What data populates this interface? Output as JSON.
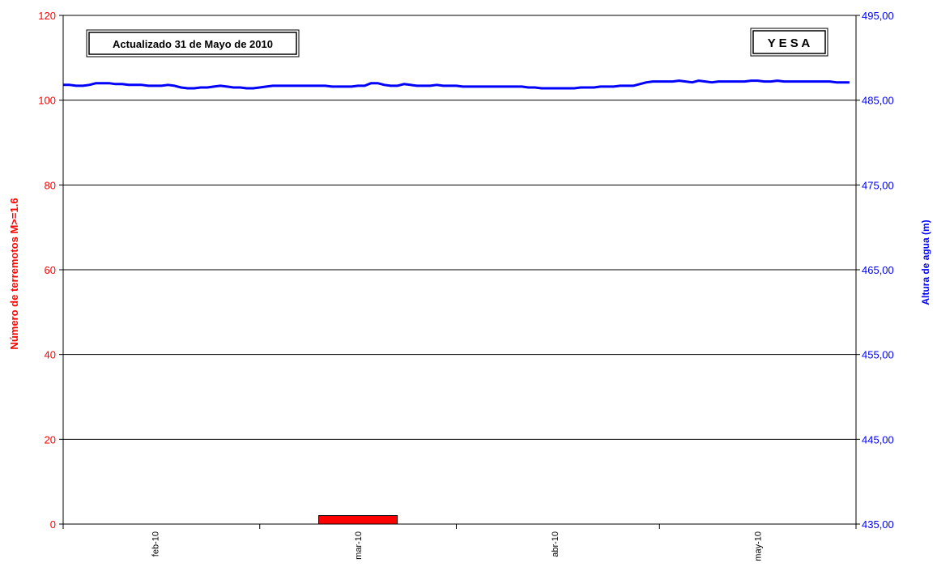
{
  "chart_data": {
    "type": "bar+line",
    "update_label": "Actualizado 31 de Mayo de 2010",
    "station_label": "Y E S A",
    "y_left": {
      "label": "Número de terremotos M>=1.6",
      "ylim": [
        0,
        120
      ],
      "ticks": [
        "0",
        "20",
        "40",
        "60",
        "80",
        "100",
        "120"
      ],
      "color": "#ff0000"
    },
    "y_right": {
      "label": "Altura de agua (m)",
      "ylim": [
        435,
        495
      ],
      "ticks": [
        "435,00",
        "445,00",
        "455,00",
        "465,00",
        "475,00",
        "485,00",
        "495,00"
      ],
      "color": "#0000ff"
    },
    "x": {
      "range_days": [
        0,
        121
      ],
      "month_labels": [
        "feb-10",
        "mar-10",
        "abr-10",
        "may-10"
      ],
      "month_label_day": [
        14,
        45,
        75,
        106
      ],
      "month_boundaries_day": [
        0,
        30,
        60,
        91,
        121
      ]
    },
    "bars": {
      "name": "Número de terremotos",
      "color": "#ff0000",
      "data": [
        {
          "day_start": 39,
          "day_end": 51,
          "value": 2
        }
      ]
    },
    "line": {
      "name": "Altura de agua (m)",
      "color": "#0000ff",
      "day_step": 1,
      "values": [
        486.8,
        486.8,
        486.7,
        486.7,
        486.8,
        487.0,
        487.0,
        487.0,
        486.9,
        486.9,
        486.8,
        486.8,
        486.8,
        486.7,
        486.7,
        486.7,
        486.8,
        486.7,
        486.5,
        486.4,
        486.4,
        486.5,
        486.5,
        486.6,
        486.7,
        486.6,
        486.5,
        486.5,
        486.4,
        486.4,
        486.5,
        486.6,
        486.7,
        486.7,
        486.7,
        486.7,
        486.7,
        486.7,
        486.7,
        486.7,
        486.7,
        486.6,
        486.6,
        486.6,
        486.6,
        486.7,
        486.7,
        487.0,
        487.0,
        486.8,
        486.7,
        486.7,
        486.9,
        486.8,
        486.7,
        486.7,
        486.7,
        486.8,
        486.7,
        486.7,
        486.7,
        486.6,
        486.6,
        486.6,
        486.6,
        486.6,
        486.6,
        486.6,
        486.6,
        486.6,
        486.6,
        486.5,
        486.5,
        486.4,
        486.4,
        486.4,
        486.4,
        486.4,
        486.4,
        486.5,
        486.5,
        486.5,
        486.6,
        486.6,
        486.6,
        486.7,
        486.7,
        486.7,
        486.9,
        487.1,
        487.2,
        487.2,
        487.2,
        487.2,
        487.3,
        487.2,
        487.1,
        487.3,
        487.2,
        487.1,
        487.2,
        487.2,
        487.2,
        487.2,
        487.2,
        487.3,
        487.3,
        487.2,
        487.2,
        487.3,
        487.2,
        487.2,
        487.2,
        487.2,
        487.2,
        487.2,
        487.2,
        487.2,
        487.1,
        487.1,
        487.1
      ]
    },
    "grid": true
  }
}
